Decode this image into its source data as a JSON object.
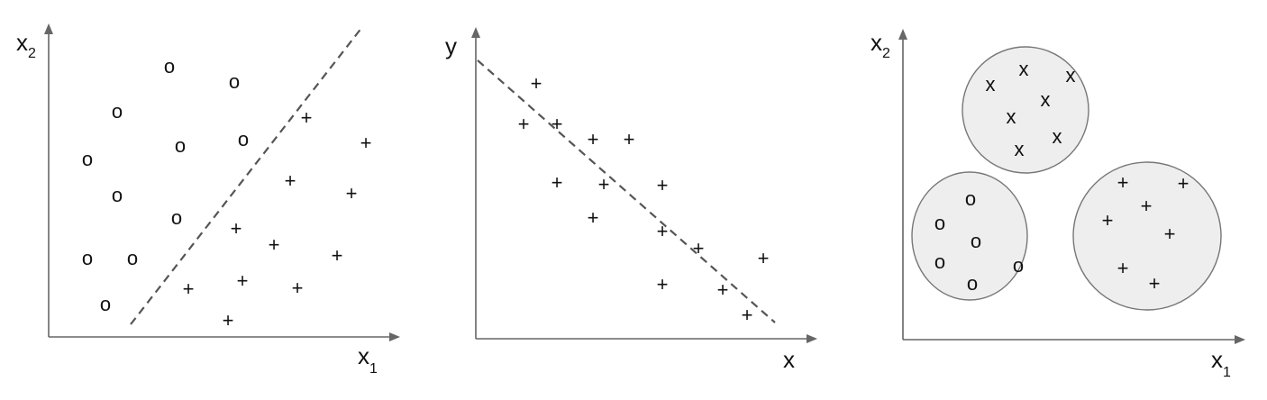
{
  "panels": [
    {
      "x_label": "x",
      "x_sub": "1",
      "y_label": "x",
      "y_sub": "2",
      "groups": [
        {
          "symbol": "o",
          "points": [
            [
              188,
              73
            ],
            [
              260,
              90
            ],
            [
              130,
              123
            ],
            [
              200,
              161
            ],
            [
              270,
              154
            ],
            [
              97,
              176
            ],
            [
              130,
              216
            ],
            [
              196,
              241
            ],
            [
              97,
              286
            ],
            [
              147,
              286
            ],
            [
              117,
              337
            ]
          ]
        },
        {
          "symbol": "+",
          "points": [
            [
              340,
              130
            ],
            [
              406,
              158
            ],
            [
              322,
              200
            ],
            [
              390,
              214
            ],
            [
              262,
              253
            ],
            [
              304,
              271
            ],
            [
              374,
              283
            ],
            [
              209,
              320
            ],
            [
              269,
              311
            ],
            [
              330,
              319
            ],
            [
              253,
              355
            ]
          ]
        }
      ],
      "boundary": "dashed line separating o from +"
    },
    {
      "x_label": "x",
      "x_sub": "",
      "y_label": "y",
      "y_sub": "",
      "groups": [
        {
          "symbol": "+",
          "points": [
            [
              595,
              92
            ],
            [
              581,
              137
            ],
            [
              618,
              137
            ],
            [
              658,
              154
            ],
            [
              698,
              154
            ],
            [
              618,
              202
            ],
            [
              670,
              204
            ],
            [
              735,
              205
            ],
            [
              658,
              241
            ],
            [
              735,
              256
            ],
            [
              775,
              275
            ],
            [
              847,
              286
            ],
            [
              735,
              315
            ],
            [
              802,
              321
            ],
            [
              829,
              349
            ]
          ]
        }
      ],
      "boundary": "dashed regression line"
    },
    {
      "x_label": "x",
      "x_sub": "1",
      "y_label": "x",
      "y_sub": "2",
      "groups": [
        {
          "symbol": "x",
          "points": [
            [
              1099,
              93
            ],
            [
              1136,
              76
            ],
            [
              1188,
              83
            ],
            [
              1160,
              110
            ],
            [
              1122,
              129
            ],
            [
              1173,
              151
            ],
            [
              1131,
              165
            ]
          ]
        },
        {
          "symbol": "o",
          "points": [
            [
              1077,
              220
            ],
            [
              1043,
              247
            ],
            [
              1083,
              267
            ],
            [
              1043,
              290
            ],
            [
              1130,
              294
            ],
            [
              1079,
              314
            ]
          ]
        },
        {
          "symbol": "+",
          "points": [
            [
              1246,
              202
            ],
            [
              1313,
              203
            ],
            [
              1272,
              228
            ],
            [
              1229,
              244
            ],
            [
              1298,
              259
            ],
            [
              1246,
              297
            ],
            [
              1281,
              314
            ]
          ]
        }
      ],
      "clusters": "three shaded circles enclosing x, o and + groups"
    }
  ]
}
